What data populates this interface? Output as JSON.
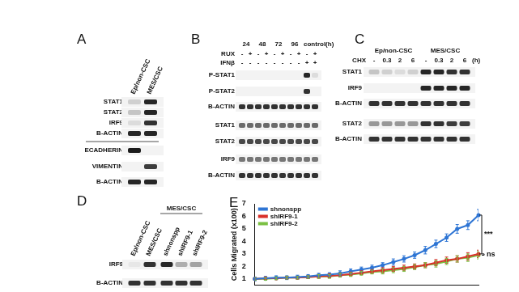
{
  "panels": {
    "A": {
      "label": "A",
      "columns": [
        "Ep/non-CSC",
        "MES/CSC"
      ],
      "rows_top": [
        "STAT1",
        "STAT2",
        "IRF9",
        "B-ACTIN"
      ],
      "rows_bottom": [
        "ECADHERIN",
        "VIMENTIN",
        "B-ACTIN"
      ]
    },
    "B": {
      "label": "B",
      "time_points": [
        "24",
        "48",
        "72",
        "96",
        "control(h)"
      ],
      "treatments": [
        {
          "name": "RUX",
          "signs": [
            "-",
            "+",
            "-",
            "+",
            "-",
            "+",
            "-",
            "+",
            "-",
            "+"
          ]
        },
        {
          "name": "IFNβ",
          "signs": [
            "-",
            "-",
            "-",
            "-",
            "-",
            "-",
            "-",
            "-",
            "+",
            "+"
          ]
        }
      ],
      "rows": [
        "P-STAT1",
        "P-STAT2",
        "B-ACTIN",
        "STAT1",
        "STAT2",
        "IRF9",
        "B-ACTIN"
      ]
    },
    "C": {
      "label": "C",
      "groups": [
        "Ep/non-CSC",
        "MES/CSC"
      ],
      "treatment": "CHX",
      "lanes": [
        "-",
        "0.3",
        "2",
        "6",
        "-",
        "0.3",
        "2",
        "6"
      ],
      "unit": "(h)",
      "rows": [
        "STAT1",
        "IRF9",
        "B-ACTIN",
        "STAT2",
        "B-ACTIN"
      ]
    },
    "D": {
      "label": "D",
      "group": "MES/CSC",
      "columns": [
        "Ep/non-CSC",
        "MES/CSC",
        "shnonspp",
        "shIRF9-1",
        "shIRF9-2"
      ],
      "rows": [
        "IRF9",
        "B-ACTIN"
      ]
    },
    "E": {
      "label": "E"
    }
  },
  "chart_data": {
    "type": "line",
    "y_label": "Cells Migrated (x100)",
    "categories": [
      null,
      null,
      null,
      null,
      null,
      null,
      null,
      null,
      null,
      null,
      null,
      null,
      null,
      null,
      null,
      null,
      null,
      null,
      null,
      null,
      null,
      null
    ],
    "series": [
      {
        "name": "shnonspp",
        "color": "#2e75d4",
        "values": [
          1.0,
          1.05,
          1.1,
          1.1,
          1.15,
          1.2,
          1.3,
          1.35,
          1.45,
          1.6,
          1.75,
          1.9,
          2.1,
          2.35,
          2.6,
          2.9,
          3.3,
          3.8,
          4.3,
          5.0,
          5.3,
          6.1
        ],
        "errors": [
          0.15,
          0.15,
          0.15,
          0.15,
          0.15,
          0.15,
          0.15,
          0.15,
          0.2,
          0.2,
          0.2,
          0.2,
          0.2,
          0.25,
          0.25,
          0.25,
          0.3,
          0.3,
          0.3,
          0.35,
          0.35,
          0.45
        ]
      },
      {
        "name": "shIRF9-1",
        "color": "#d9312b",
        "values": [
          1.0,
          1.05,
          1.05,
          1.1,
          1.1,
          1.15,
          1.2,
          1.25,
          1.3,
          1.4,
          1.5,
          1.6,
          1.7,
          1.8,
          1.9,
          2.0,
          2.1,
          2.3,
          2.5,
          2.6,
          2.8,
          3.0
        ],
        "errors": [
          0.1,
          0.1,
          0.1,
          0.1,
          0.1,
          0.1,
          0.15,
          0.15,
          0.15,
          0.15,
          0.15,
          0.15,
          0.2,
          0.2,
          0.2,
          0.2,
          0.2,
          0.25,
          0.25,
          0.25,
          0.3,
          0.3
        ]
      },
      {
        "name": "shIRF9-2",
        "color": "#7bc043",
        "values": [
          1.0,
          1.0,
          1.05,
          1.1,
          1.1,
          1.15,
          1.2,
          1.2,
          1.3,
          1.35,
          1.45,
          1.55,
          1.6,
          1.7,
          1.8,
          1.95,
          2.1,
          2.2,
          2.4,
          2.6,
          2.7,
          2.9
        ],
        "errors": [
          0.1,
          0.1,
          0.1,
          0.1,
          0.1,
          0.1,
          0.15,
          0.15,
          0.15,
          0.15,
          0.15,
          0.15,
          0.2,
          0.2,
          0.2,
          0.2,
          0.2,
          0.25,
          0.25,
          0.25,
          0.3,
          0.3
        ]
      }
    ],
    "ylim": [
      0.5,
      7
    ],
    "yticks": [
      1,
      2,
      3,
      4,
      5,
      6,
      7
    ],
    "tick_labels": "y",
    "grid": false,
    "legend": "upper left",
    "annotations": [
      {
        "text": "***",
        "between": [
          "shnonspp",
          "shIRF9-1"
        ]
      },
      {
        "text": "ns",
        "between": [
          "shIRF9-1",
          "shIRF9-2"
        ]
      }
    ]
  }
}
